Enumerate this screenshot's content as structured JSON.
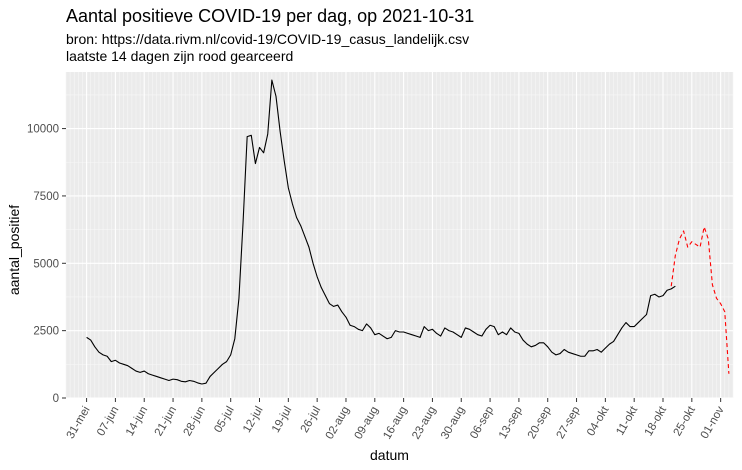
{
  "chart_data": {
    "type": "line",
    "title": "Aantal positieve COVID-19 per dag, op 2021-10-31",
    "subtitle_lines": [
      "bron: https://data.rivm.nl/covid-19/COVID-19_casus_landelijk.csv",
      "laatste 14 dagen zijn rood gearceerd"
    ],
    "xlabel": "datum",
    "ylabel": "aantal_positief",
    "x_start_date": "2021-05-29",
    "x_end_date": "2021-10-31",
    "xlim_days": [
      -3,
      159
    ],
    "ylim": [
      0,
      12100
    ],
    "yticks": [
      0,
      2500,
      5000,
      7500,
      10000
    ],
    "ytick_labels": [
      "0",
      "2500",
      "5000",
      "7500",
      "10000"
    ],
    "xticks_days": [
      2,
      9,
      16,
      23,
      30,
      37,
      44,
      51,
      58,
      65,
      72,
      79,
      86,
      93,
      100,
      107,
      114,
      121,
      128,
      135,
      142,
      149,
      156
    ],
    "xtick_labels": [
      "31-mei",
      "07-jun",
      "14-jun",
      "21-jun",
      "28-jun",
      "05-jul",
      "12-jul",
      "19-jul",
      "26-jul",
      "02-aug",
      "09-aug",
      "16-aug",
      "23-aug",
      "30-aug",
      "06-sep",
      "13-sep",
      "20-sep",
      "27-sep",
      "04-okt",
      "11-okt",
      "18-okt",
      "25-okt",
      "01-nov"
    ],
    "series": [
      {
        "name": "aantal_positief",
        "color": "#000000",
        "style": "solid",
        "start_day": 2,
        "values": [
          2250,
          2150,
          1900,
          1700,
          1600,
          1550,
          1350,
          1400,
          1300,
          1250,
          1200,
          1100,
          1000,
          950,
          1000,
          900,
          850,
          800,
          750,
          700,
          650,
          700,
          680,
          620,
          600,
          650,
          620,
          560,
          520,
          550,
          800,
          950,
          1100,
          1250,
          1350,
          1600,
          2200,
          3700,
          6500,
          9700,
          9750,
          8700,
          9300,
          9100,
          9800,
          11800,
          11200,
          9900,
          8800,
          7800,
          7200,
          6700,
          6400,
          6000,
          5600,
          5000,
          4500,
          4100,
          3800,
          3500,
          3400,
          3450,
          3200,
          3000,
          2700,
          2650,
          2550,
          2500,
          2750,
          2600,
          2350,
          2400,
          2300,
          2200,
          2250,
          2500,
          2450,
          2450,
          2400,
          2350,
          2300,
          2250,
          2650,
          2500,
          2550,
          2400,
          2300,
          2600,
          2500,
          2450,
          2350,
          2250,
          2600,
          2550,
          2450,
          2350,
          2300,
          2550,
          2700,
          2650,
          2350,
          2450,
          2350,
          2600,
          2450,
          2400,
          2150,
          2000,
          1900,
          1950,
          2050,
          2050,
          1900,
          1700,
          1600,
          1650,
          1800,
          1700,
          1650,
          1600,
          1550,
          1550,
          1750,
          1750,
          1800,
          1700,
          1850,
          2000,
          2100,
          2350,
          2600,
          2800,
          2650,
          2650,
          2800,
          2950,
          3100,
          3800,
          3850,
          3750,
          3800,
          4000,
          4050,
          4150
        ]
      },
      {
        "name": "laatste 14 dagen",
        "color": "#ff0000",
        "style": "dashed",
        "start_day": 144,
        "values": [
          4150,
          5300,
          5900,
          6200,
          5600,
          5800,
          5700,
          5600,
          6350,
          5900,
          4200,
          3700,
          3500,
          3200,
          900
        ]
      }
    ]
  }
}
